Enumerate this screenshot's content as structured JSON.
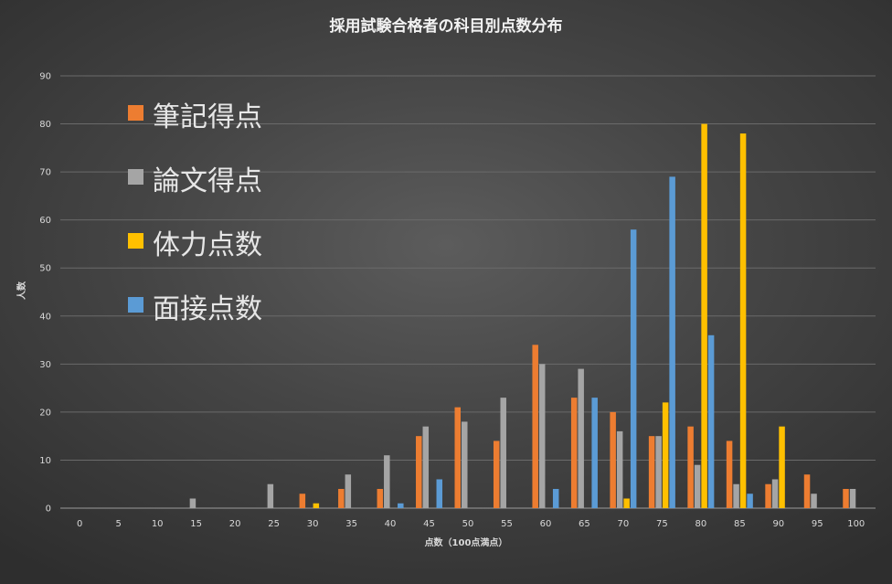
{
  "chart_data": {
    "type": "bar",
    "title": "採用試験合格者の科目別点数分布",
    "xlabel": "点数（100点満点）",
    "ylabel": "人数",
    "ylim": [
      0,
      90
    ],
    "yticks": [
      0,
      10,
      20,
      30,
      40,
      50,
      60,
      70,
      80,
      90
    ],
    "grid": true,
    "legend_position": "top-left",
    "categories": [
      "0",
      "5",
      "10",
      "15",
      "20",
      "25",
      "30",
      "35",
      "40",
      "45",
      "50",
      "55",
      "60",
      "65",
      "70",
      "75",
      "80",
      "85",
      "90",
      "95",
      "100"
    ],
    "series": [
      {
        "name": "筆記得点",
        "color": "#ed7d31",
        "values": [
          0,
          0,
          0,
          0,
          0,
          0,
          3,
          4,
          4,
          15,
          21,
          14,
          34,
          23,
          20,
          15,
          17,
          14,
          5,
          7,
          4
        ]
      },
      {
        "name": "論文得点",
        "color": "#a5a5a5",
        "values": [
          0,
          0,
          0,
          2,
          0,
          5,
          0,
          7,
          11,
          17,
          18,
          23,
          30,
          29,
          16,
          15,
          9,
          5,
          6,
          3,
          4
        ]
      },
      {
        "name": "体力点数",
        "color": "#ffc000",
        "values": [
          0,
          0,
          0,
          0,
          0,
          0,
          1,
          0,
          0,
          0,
          0,
          0,
          0,
          0,
          2,
          22,
          80,
          78,
          17,
          0,
          0
        ]
      },
      {
        "name": "面接点数",
        "color": "#5b9bd5",
        "values": [
          0,
          0,
          0,
          0,
          0,
          0,
          0,
          0,
          1,
          6,
          0,
          0,
          4,
          23,
          58,
          69,
          36,
          3,
          0,
          0,
          0
        ]
      }
    ]
  }
}
